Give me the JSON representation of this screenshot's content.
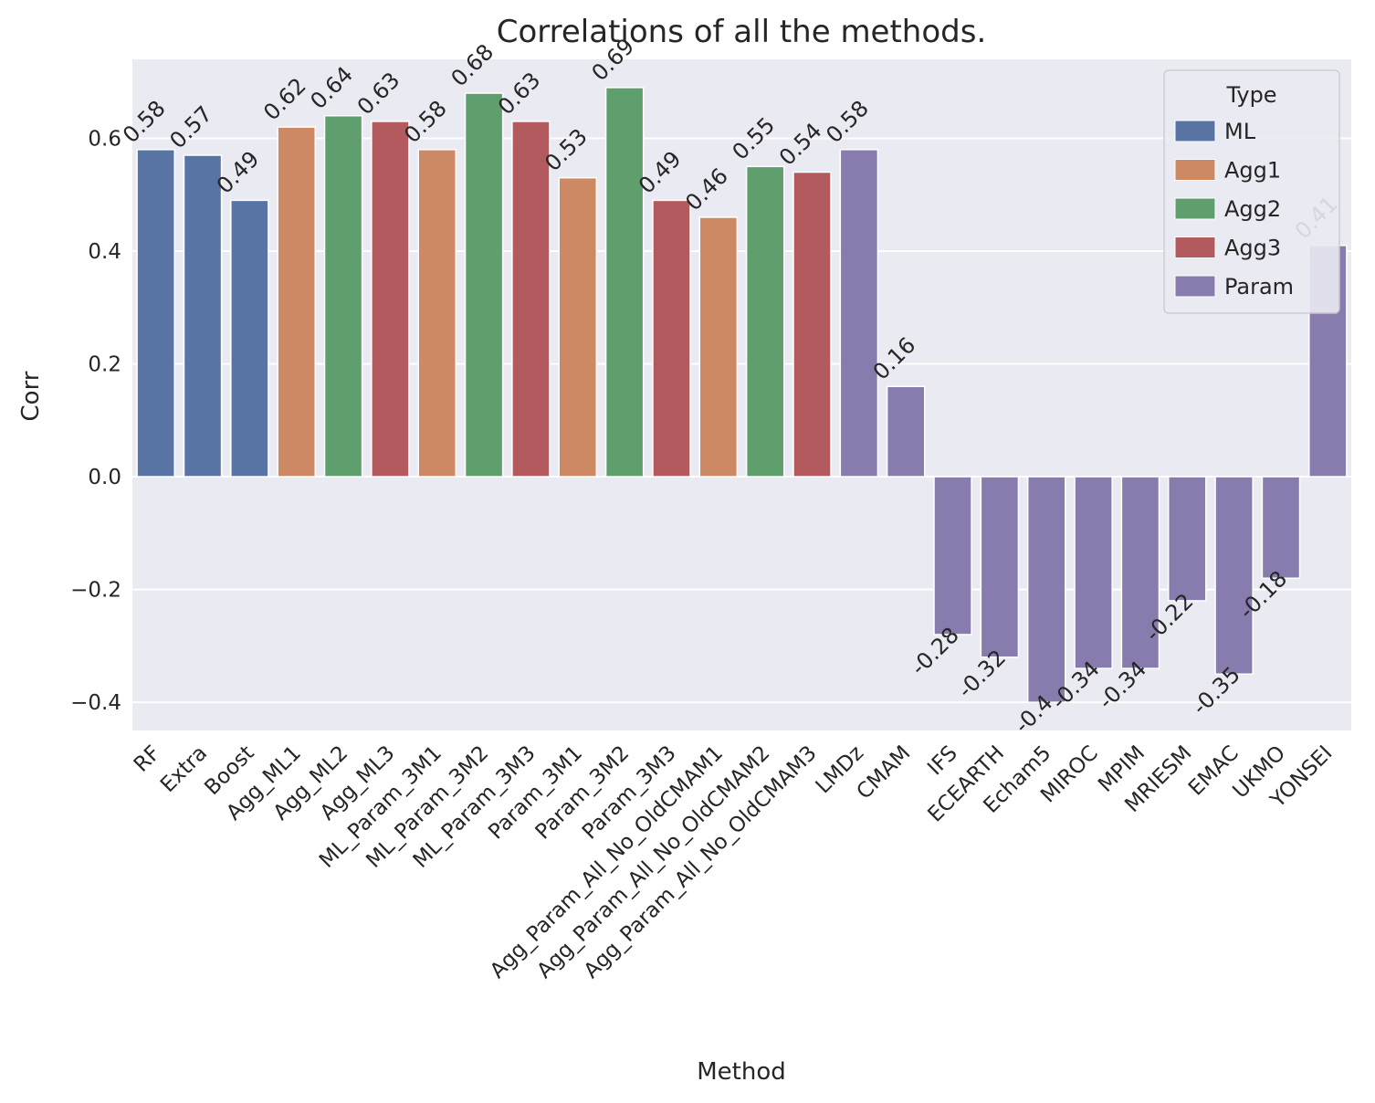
{
  "chart_data": {
    "type": "bar",
    "title": "Correlations of all the methods.",
    "xlabel": "Method",
    "ylabel": "Corr",
    "ylim": [
      -0.45,
      0.74
    ],
    "yticks": [
      -0.4,
      -0.2,
      0.0,
      0.2,
      0.4,
      0.6
    ],
    "ytick_labels": [
      "−0.4",
      "−0.2",
      "0.0",
      "0.2",
      "0.4",
      "0.6"
    ],
    "grid": true,
    "legend": {
      "title": "Type",
      "position": "top-right",
      "entries": [
        {
          "name": "ML",
          "color": "#5874a4"
        },
        {
          "name": "Agg1",
          "color": "#cc8963"
        },
        {
          "name": "Agg2",
          "color": "#5e9f6d"
        },
        {
          "name": "Agg3",
          "color": "#b35a5e"
        },
        {
          "name": "Param",
          "color": "#877cad"
        }
      ]
    },
    "categories": [
      "RF",
      "Extra",
      "Boost",
      "Agg_ML1",
      "Agg_ML2",
      "Agg_ML3",
      "ML_Param_3M1",
      "ML_Param_3M2",
      "ML_Param_3M3",
      "Param_3M1",
      "Param_3M2",
      "Param_3M3",
      "Agg_Param_All_No_OldCMAM1",
      "Agg_Param_All_No_OldCMAM2",
      "Agg_Param_All_No_OldCMAM3",
      "LMDz",
      "CMAM",
      "IFS",
      "ECEARTH",
      "Echam5",
      "MIROC",
      "MPIM",
      "MRIESM",
      "EMAC",
      "UKMO",
      "YONSEI"
    ],
    "values": [
      0.58,
      0.57,
      0.49,
      0.62,
      0.64,
      0.63,
      0.58,
      0.68,
      0.63,
      0.53,
      0.69,
      0.49,
      0.46,
      0.55,
      0.54,
      0.58,
      0.16,
      -0.28,
      -0.32,
      -0.4,
      -0.34,
      -0.34,
      -0.22,
      -0.35,
      -0.18,
      0.41
    ],
    "value_labels": [
      "0.58",
      "0.57",
      "0.49",
      "0.62",
      "0.64",
      "0.63",
      "0.58",
      "0.68",
      "0.63",
      "0.53",
      "0.69",
      "0.49",
      "0.46",
      "0.55",
      "0.54",
      "0.58",
      "0.16",
      "-0.28",
      "-0.32",
      "-0.4",
      "-0.34",
      "-0.34",
      "-0.22",
      "-0.35",
      "-0.18",
      "0.41"
    ],
    "types": [
      "ML",
      "ML",
      "ML",
      "Agg1",
      "Agg2",
      "Agg3",
      "Agg1",
      "Agg2",
      "Agg3",
      "Agg1",
      "Agg2",
      "Agg3",
      "Agg1",
      "Agg2",
      "Agg3",
      "Param",
      "Param",
      "Param",
      "Param",
      "Param",
      "Param",
      "Param",
      "Param",
      "Param",
      "Param",
      "Param"
    ]
  },
  "colors": {
    "plot_background": "#eaeaf2",
    "grid": "#ffffff",
    "text": "#262626"
  }
}
